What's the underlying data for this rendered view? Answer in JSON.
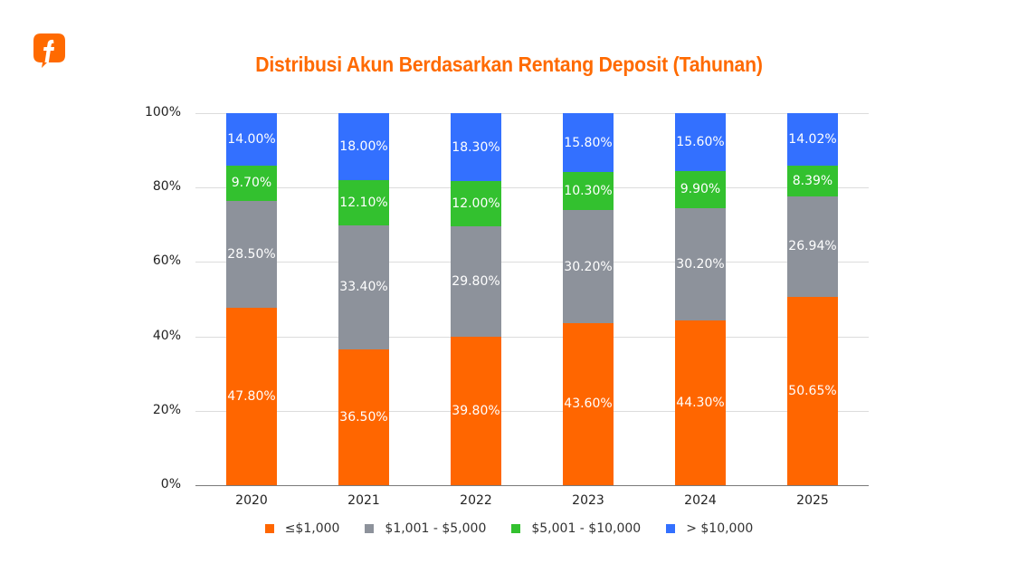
{
  "logo": {
    "icon": "f-brand-icon",
    "color": "#ff6a00"
  },
  "chart_data": {
    "type": "bar",
    "stacked": true,
    "percent": true,
    "title": "Distribusi Akun Berdasarkan Rentang Deposit (Tahunan)",
    "xlabel": "",
    "ylabel": "",
    "ylim": [
      0,
      100
    ],
    "yticks": [
      "0%",
      "20%",
      "40%",
      "60%",
      "80%",
      "100%"
    ],
    "grid": true,
    "legend_position": "bottom",
    "categories": [
      "2020",
      "2021",
      "2022",
      "2023",
      "2024",
      "2025"
    ],
    "series": [
      {
        "name": "≤$1,000",
        "color": "#ff6600",
        "values": [
          47.8,
          36.5,
          39.8,
          43.6,
          44.3,
          50.65
        ],
        "labels": [
          "47.80%",
          "36.50%",
          "39.80%",
          "43.60%",
          "44.30%",
          "50.65%"
        ]
      },
      {
        "name": "$1,001 - $5,000",
        "color": "#8d929b",
        "values": [
          28.5,
          33.4,
          29.8,
          30.2,
          30.2,
          26.94
        ],
        "labels": [
          "28.50%",
          "33.40%",
          "29.80%",
          "30.20%",
          "30.20%",
          "26.94%"
        ]
      },
      {
        "name": "$5,001 - $10,000",
        "color": "#33c12f",
        "values": [
          9.7,
          12.1,
          12.0,
          10.3,
          9.9,
          8.39
        ],
        "labels": [
          "9.70%",
          "12.10%",
          "12.00%",
          "10.30%",
          "9.90%",
          "8.39%"
        ]
      },
      {
        "name": "> $10,000",
        "color": "#3370ff",
        "values": [
          14.0,
          18.0,
          18.3,
          15.8,
          15.6,
          14.02
        ],
        "labels": [
          "14.00%",
          "18.00%",
          "18.30%",
          "15.80%",
          "15.60%",
          "14.02%"
        ]
      }
    ]
  }
}
